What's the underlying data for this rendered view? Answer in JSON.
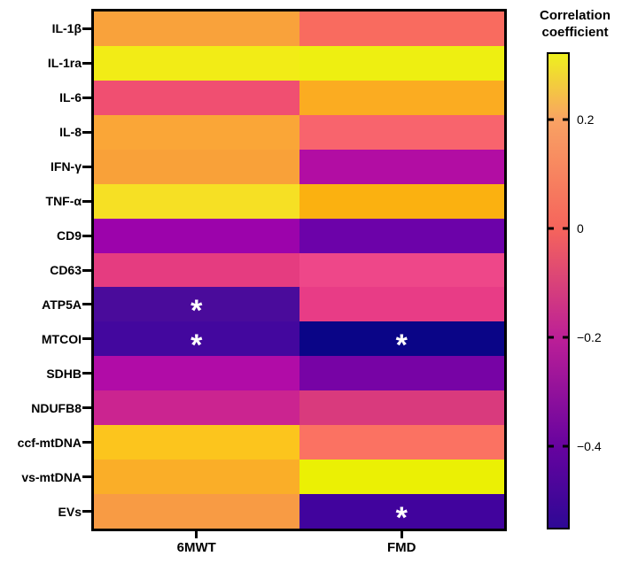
{
  "chart_data": {
    "type": "heatmap",
    "columns": [
      "6MWT",
      "FMD"
    ],
    "rows": [
      "IL-1β",
      "IL-1ra",
      "IL-6",
      "IL-8",
      "IFN-γ",
      "TNF-α",
      "CD9",
      "CD63",
      "ATP5A",
      "MTCOI",
      "SDHB",
      "NDUFB8",
      "ccf-mtDNA",
      "vs-mtDNA",
      "EVs"
    ],
    "values": [
      [
        0.14,
        0.0
      ],
      [
        0.29,
        0.3
      ],
      [
        -0.09,
        0.16
      ],
      [
        0.15,
        -0.03
      ],
      [
        0.13,
        -0.24
      ],
      [
        0.26,
        0.17
      ],
      [
        -0.27,
        -0.37
      ],
      [
        -0.14,
        -0.12
      ],
      [
        -0.45,
        -0.14
      ],
      [
        -0.46,
        -0.55
      ],
      [
        -0.24,
        -0.34
      ],
      [
        -0.18,
        -0.16
      ],
      [
        0.22,
        0.02
      ],
      [
        0.16,
        0.31
      ],
      [
        0.12,
        -0.46
      ]
    ],
    "cell_colors": [
      [
        "#F9A23B",
        "#F96B5F"
      ],
      [
        "#F2EC16",
        "#EEEF11"
      ],
      [
        "#F04F71",
        "#FBAC21"
      ],
      [
        "#FAA637",
        "#F8646D"
      ],
      [
        "#F9A139",
        "#B20DA3"
      ],
      [
        "#F6E024",
        "#FBB110"
      ],
      [
        "#9C03AB",
        "#6C02A9"
      ],
      [
        "#E53C80",
        "#EE4789"
      ],
      [
        "#4A0B9B",
        "#E83C86"
      ],
      [
        "#43079E",
        "#0A0587"
      ],
      [
        "#B10CA7",
        "#7703A5"
      ],
      [
        "#CB2490",
        "#D93A7D"
      ],
      [
        "#FCC51D",
        "#FB7262"
      ],
      [
        "#FAAE28",
        "#EBF004"
      ],
      [
        "#F89B44",
        "#41039D"
      ]
    ],
    "significant": [
      [
        0,
        0
      ],
      [
        0,
        0
      ],
      [
        0,
        0
      ],
      [
        0,
        0
      ],
      [
        0,
        0
      ],
      [
        0,
        0
      ],
      [
        0,
        0
      ],
      [
        0,
        0
      ],
      [
        1,
        0
      ],
      [
        1,
        1
      ],
      [
        0,
        0
      ],
      [
        0,
        0
      ],
      [
        0,
        0
      ],
      [
        0,
        0
      ],
      [
        0,
        1
      ]
    ],
    "sig_marker": "*",
    "sig_marker_color": "#FFFFFF",
    "colorbar": {
      "title": "Correlation coefficient",
      "title_lines": [
        "Correlation",
        "coefficient"
      ],
      "range": [
        -0.55,
        0.32
      ],
      "ticks": [
        {
          "value": 0.2,
          "label": "0.2"
        },
        {
          "value": 0.0,
          "label": "0"
        },
        {
          "value": -0.2,
          "label": "−0.2"
        },
        {
          "value": -0.4,
          "label": "−0.4"
        }
      ],
      "gradient": [
        {
          "pos": 0,
          "color": "#EEF01E"
        },
        {
          "pos": 14,
          "color": "#F9A263"
        },
        {
          "pos": 37,
          "color": "#F5645C"
        },
        {
          "pos": 60,
          "color": "#BC1F97"
        },
        {
          "pos": 83,
          "color": "#66039F"
        },
        {
          "pos": 100,
          "color": "#2E0895"
        }
      ]
    },
    "axis_color": "#000000",
    "legend_position": "right",
    "grid": false
  }
}
